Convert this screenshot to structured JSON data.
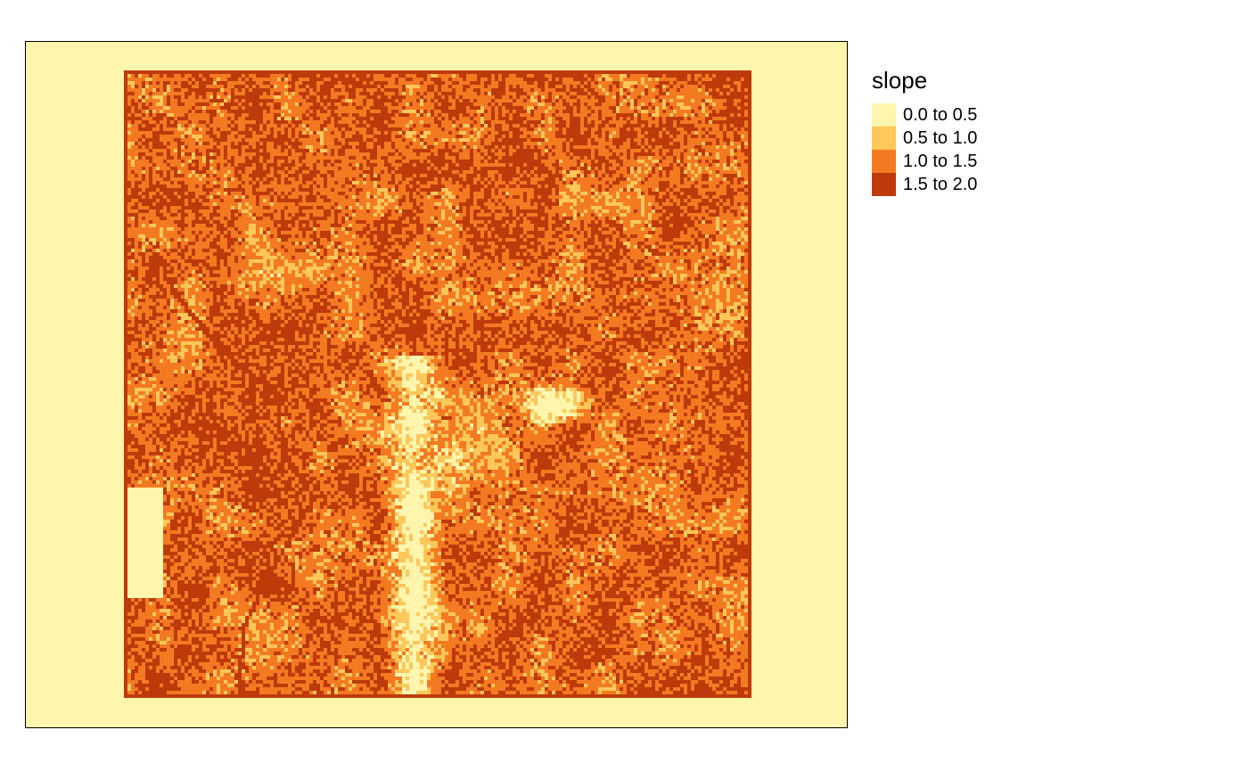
{
  "legend": {
    "title": "slope",
    "classes": [
      {
        "label": "0.0 to 0.5",
        "color": "#FFF5AD"
      },
      {
        "label": "0.5 to 1.0",
        "color": "#FDC75A"
      },
      {
        "label": "1.0 to 1.5",
        "color": "#F47A22"
      },
      {
        "label": "1.5 to 2.0",
        "color": "#BE3A0A"
      }
    ]
  },
  "colors": {
    "background": "#FFF5AD",
    "frame": "#000000"
  }
}
